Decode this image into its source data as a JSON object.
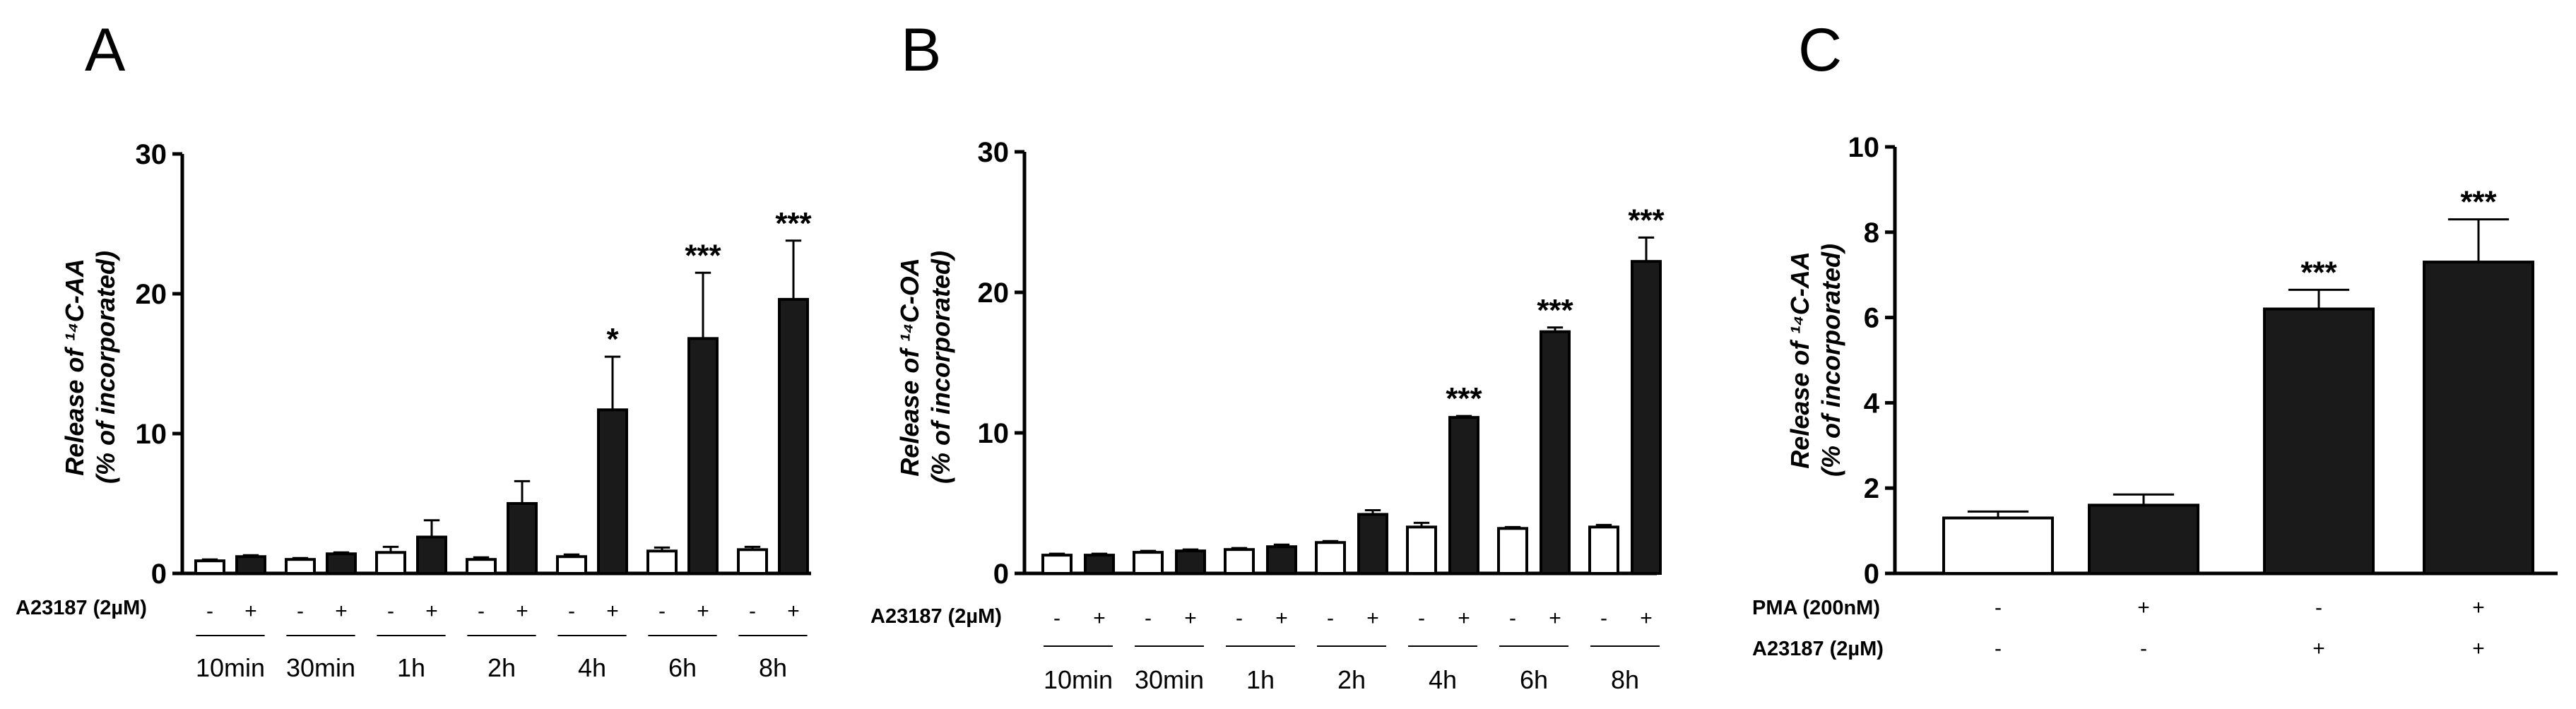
{
  "colors": {
    "control_bar": "#ffffff",
    "treated_bar": "#1a1a1a",
    "axis": "#000000"
  },
  "chart_data": [
    {
      "type": "bar",
      "panel": "A",
      "ylabel_line1": "Release of ¹⁴C-AA",
      "ylabel_line2": "(% of incorporated)",
      "ylim": [
        0,
        30
      ],
      "yticks": [
        "0",
        "10",
        "20",
        "30"
      ],
      "row_label": "A23187 (2µM)",
      "categories": [
        "10min",
        "30min",
        "1h",
        "2h",
        "4h",
        "6h",
        "8h"
      ],
      "series": [
        {
          "name": "-",
          "values": [
            0.9,
            1.0,
            1.5,
            1.0,
            1.2,
            1.6,
            1.7
          ],
          "errors": [
            0.1,
            0.1,
            0.4,
            0.15,
            0.15,
            0.25,
            0.2
          ],
          "stars": [
            "",
            "",
            "",
            "",
            "",
            "",
            ""
          ]
        },
        {
          "name": "+",
          "values": [
            1.2,
            1.4,
            2.6,
            5.0,
            11.7,
            16.8,
            19.6
          ],
          "errors": [
            0.1,
            0.1,
            1.2,
            1.6,
            3.8,
            4.7,
            4.2
          ],
          "stars": [
            "",
            "",
            "",
            "",
            "*",
            "***",
            "***"
          ]
        }
      ]
    },
    {
      "type": "bar",
      "panel": "B",
      "ylabel_line1": "Release of ¹⁴C-OA",
      "ylabel_line2": "(% of incorporated)",
      "ylim": [
        0,
        30
      ],
      "yticks": [
        "0",
        "10",
        "20",
        "30"
      ],
      "row_label": "A23187 (2µM)",
      "categories": [
        "10min",
        "30min",
        "1h",
        "2h",
        "4h",
        "6h",
        "8h"
      ],
      "series": [
        {
          "name": "-",
          "values": [
            1.3,
            1.5,
            1.7,
            2.2,
            3.3,
            3.2,
            3.3
          ],
          "errors": [
            0.1,
            0.1,
            0.1,
            0.1,
            0.3,
            0.1,
            0.15
          ],
          "stars": [
            "",
            "",
            "",
            "",
            "",
            "",
            ""
          ]
        },
        {
          "name": "+",
          "values": [
            1.3,
            1.6,
            1.9,
            4.2,
            11.1,
            17.2,
            22.2
          ],
          "errors": [
            0.1,
            0.1,
            0.15,
            0.3,
            0.1,
            0.3,
            1.7
          ],
          "stars": [
            "",
            "",
            "",
            "",
            "***",
            "***",
            "***"
          ]
        }
      ]
    },
    {
      "type": "bar",
      "panel": "C",
      "ylabel_line1": "Release of ¹⁴C-AA",
      "ylabel_line2": "(% of incorporated)",
      "ylim": [
        0,
        10
      ],
      "yticks": [
        "0",
        "2",
        "4",
        "6",
        "8",
        "10"
      ],
      "bars": [
        {
          "value": 1.3,
          "error": 0.15,
          "color": "white",
          "star": ""
        },
        {
          "value": 1.6,
          "error": 0.25,
          "color": "black",
          "star": ""
        },
        {
          "value": 6.2,
          "error": 0.45,
          "color": "black",
          "star": "***"
        },
        {
          "value": 7.3,
          "error": 1.0,
          "color": "black",
          "star": "***"
        }
      ],
      "rows": [
        {
          "label": "PMA (200nM)",
          "signs": [
            "-",
            "+",
            "-",
            "+"
          ]
        },
        {
          "label": "A23187 (2µM)",
          "signs": [
            "-",
            "-",
            "+",
            "+"
          ]
        }
      ]
    }
  ]
}
